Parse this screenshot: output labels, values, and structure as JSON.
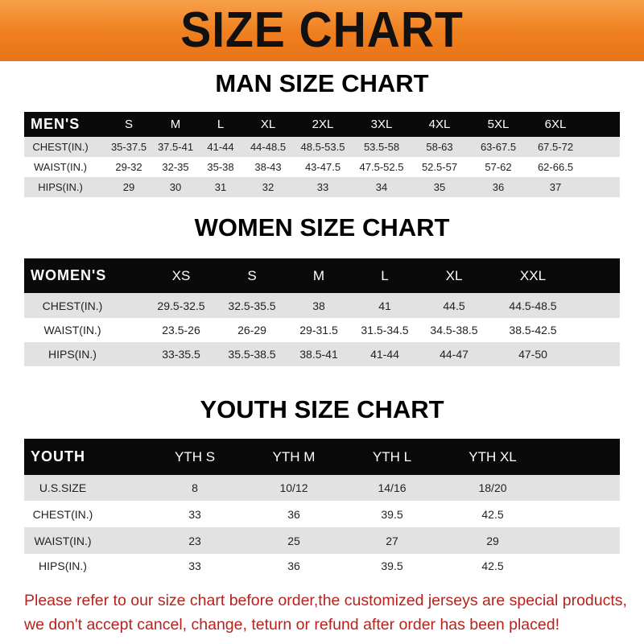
{
  "banner": {
    "title": "SIZE CHART",
    "color": "#ef7f1e"
  },
  "men": {
    "title": "MAN SIZE CHART",
    "header": [
      "MEN'S",
      "S",
      "M",
      "L",
      "XL",
      "2XL",
      "3XL",
      "4XL",
      "5XL",
      "6XL"
    ],
    "rows": [
      [
        "CHEST(IN.)",
        "35-37.5",
        "37.5-41",
        "41-44",
        "44-48.5",
        "48.5-53.5",
        "53.5-58",
        "58-63",
        "63-67.5",
        "67.5-72"
      ],
      [
        "WAIST(IN.)",
        "29-32",
        "32-35",
        "35-38",
        "38-43",
        "43-47.5",
        "47.5-52.5",
        "52.5-57",
        "57-62",
        "62-66.5"
      ],
      [
        "HIPS(IN.)",
        "29",
        "30",
        "31",
        "32",
        "33",
        "34",
        "35",
        "36",
        "37"
      ]
    ]
  },
  "women": {
    "title": "WOMEN SIZE CHART",
    "header": [
      "WOMEN'S",
      "XS",
      "S",
      "M",
      "L",
      "XL",
      "XXL"
    ],
    "rows": [
      [
        "CHEST(IN.)",
        "29.5-32.5",
        "32.5-35.5",
        "38",
        "41",
        "44.5",
        "44.5-48.5"
      ],
      [
        "WAIST(IN.)",
        "23.5-26",
        "26-29",
        "29-31.5",
        "31.5-34.5",
        "34.5-38.5",
        "38.5-42.5"
      ],
      [
        "HIPS(IN.)",
        "33-35.5",
        "35.5-38.5",
        "38.5-41",
        "41-44",
        "44-47",
        "47-50"
      ]
    ]
  },
  "youth": {
    "title": "YOUTH SIZE CHART",
    "header": [
      "YOUTH",
      "YTH S",
      "YTH M",
      "YTH L",
      "YTH XL"
    ],
    "rows": [
      [
        "U.S.SIZE",
        "8",
        "10/12",
        "14/16",
        "18/20"
      ],
      [
        "CHEST(IN.)",
        "33",
        "36",
        "39.5",
        "42.5"
      ],
      [
        "WAIST(IN.)",
        "23",
        "25",
        "27",
        "29"
      ],
      [
        "HIPS(IN.)",
        "33",
        "36",
        "39.5",
        "42.5"
      ]
    ]
  },
  "notice": {
    "line1": "Please refer to our size chart before order,the customized jerseys are special products,",
    "line2": "we don't accept cancel, change, teturn or refund after order has been placed!",
    "color": "#b5231e"
  }
}
